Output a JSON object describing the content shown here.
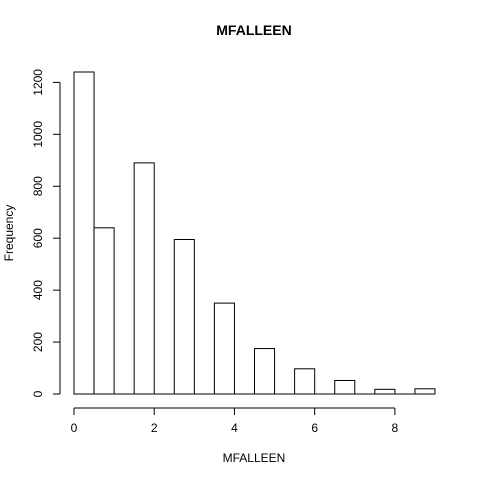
{
  "chart_data": {
    "type": "bar",
    "title": "MFALLEEN",
    "xlabel": "MFALLEEN",
    "ylabel": "Frequency",
    "xlim": [
      0,
      9
    ],
    "ylim": [
      0,
      1240
    ],
    "x_ticks": [
      0,
      2,
      4,
      6,
      8
    ],
    "y_ticks": [
      0,
      200,
      400,
      600,
      800,
      1000,
      1200
    ],
    "bin_width": 0.5,
    "bin_starts": [
      0,
      0.5,
      1,
      1.5,
      2,
      2.5,
      3,
      3.5,
      4,
      4.5,
      5,
      5.5,
      6,
      6.5,
      7,
      7.5,
      8,
      8.5
    ],
    "values": [
      1240,
      640,
      0,
      890,
      0,
      595,
      0,
      350,
      0,
      175,
      0,
      97,
      0,
      52,
      0,
      18,
      0,
      20
    ],
    "grid": false,
    "legend": "none",
    "bar_fill": "#ffffff",
    "bar_stroke": "#000000"
  }
}
